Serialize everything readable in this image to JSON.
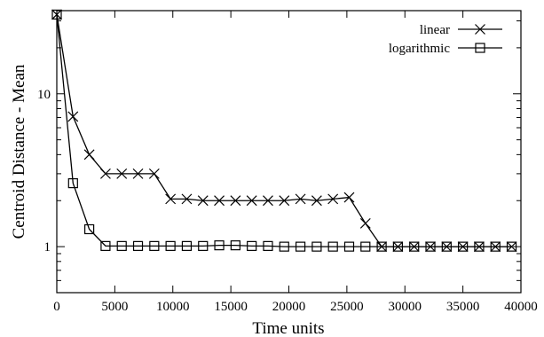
{
  "chart_data": {
    "type": "line",
    "title": "",
    "xlabel": "Time units",
    "ylabel": "Centroid Distance - Mean",
    "xlim": [
      0,
      40000
    ],
    "ylim": [
      0.5,
      35
    ],
    "yscale": "log",
    "grid": false,
    "legend_position": "top-right",
    "x_ticks": [
      0,
      5000,
      10000,
      15000,
      20000,
      25000,
      30000,
      35000,
      40000
    ],
    "x_tick_labels": [
      "0",
      "5000",
      "10000",
      "15000",
      "20000",
      "25000",
      "30000",
      "35000",
      "40000"
    ],
    "y_ticks": [
      1,
      10
    ],
    "y_tick_labels": [
      "1",
      "10"
    ],
    "series": [
      {
        "name": "linear",
        "marker": "x-cross",
        "x": [
          0,
          1400,
          2800,
          4200,
          5600,
          7000,
          8400,
          9800,
          11200,
          12600,
          14000,
          15400,
          16800,
          18200,
          19600,
          21000,
          22400,
          23800,
          25200,
          26600,
          28000,
          29400,
          30800,
          32200,
          33600,
          35000,
          36400,
          37800,
          39200
        ],
        "values": [
          33,
          7.1,
          4.0,
          3.0,
          3.0,
          3.0,
          3.0,
          2.05,
          2.05,
          2.0,
          2.0,
          2.0,
          2.0,
          2.0,
          2.0,
          2.05,
          2.0,
          2.05,
          2.1,
          1.42,
          1.0,
          1.0,
          1.0,
          1.0,
          1.0,
          1.0,
          1.0,
          1.0,
          1.0
        ]
      },
      {
        "name": "logarithmic",
        "marker": "square",
        "x": [
          0,
          1400,
          2800,
          4200,
          5600,
          7000,
          8400,
          9800,
          11200,
          12600,
          14000,
          15400,
          16800,
          18200,
          19600,
          21000,
          22400,
          23800,
          25200,
          26600,
          28000,
          29400,
          30800,
          32200,
          33600,
          35000,
          36400,
          37800,
          39200
        ],
        "values": [
          33,
          2.6,
          1.3,
          1.01,
          1.01,
          1.01,
          1.01,
          1.01,
          1.01,
          1.01,
          1.02,
          1.02,
          1.01,
          1.01,
          1.0,
          1.0,
          1.0,
          1.0,
          1.0,
          1.0,
          1.0,
          1.0,
          1.0,
          1.0,
          1.0,
          1.0,
          1.0,
          1.0,
          1.0
        ]
      }
    ]
  }
}
